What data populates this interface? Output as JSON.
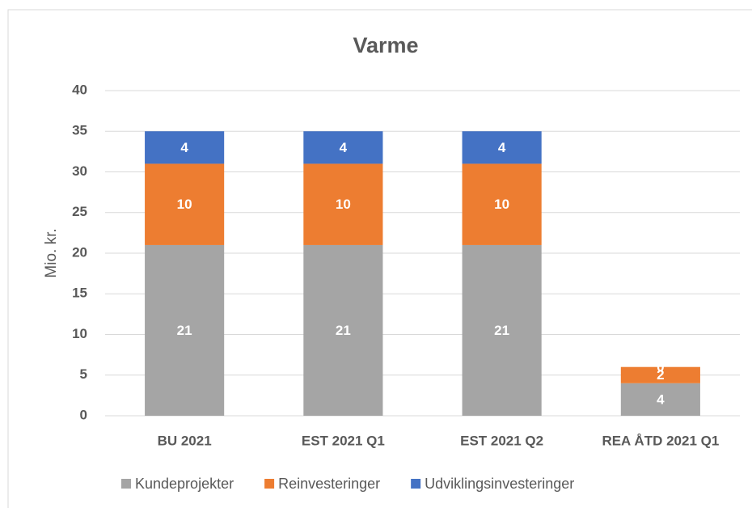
{
  "chart_data": {
    "type": "stacked_bar",
    "title": "Varme",
    "y_label": "Mio. kr.",
    "categories": [
      "BU 2021",
      "EST 2021 Q1",
      "EST 2021 Q2",
      "REA ÅTD 2021 Q1"
    ],
    "series": [
      {
        "name": "Kundeprojekter",
        "color": "#a5a5a5",
        "values": [
          21,
          21,
          21,
          4
        ]
      },
      {
        "name": "Reinvesteringer",
        "color": "#ed7d31",
        "values": [
          10,
          10,
          10,
          2
        ]
      },
      {
        "name": "Udviklingsinvesteringer",
        "color": "#4472c4",
        "values": [
          4,
          4,
          4,
          0
        ]
      }
    ],
    "ylim": [
      0,
      40
    ],
    "yticks": [
      0,
      5,
      10,
      15,
      20,
      25,
      30,
      35,
      40
    ],
    "grid": true,
    "legend": "bottom"
  }
}
